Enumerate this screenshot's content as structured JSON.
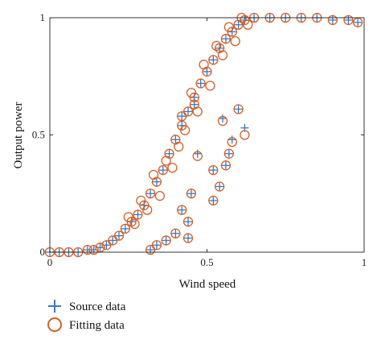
{
  "chart_data": {
    "type": "scatter",
    "xlabel": "Wind speed",
    "ylabel": "Output power",
    "xlim": [
      0,
      1
    ],
    "ylim": [
      0,
      1
    ],
    "x_ticks": [
      {
        "value": 0,
        "label": "0"
      },
      {
        "value": 0.5,
        "label": "0.5"
      },
      {
        "value": 1,
        "label": "1"
      }
    ],
    "y_ticks": [
      {
        "value": 0,
        "label": "0"
      },
      {
        "value": 0.5,
        "label": "0.5"
      },
      {
        "value": 1,
        "label": "1"
      }
    ],
    "grid": false,
    "legend_position": "bottom-left",
    "series": [
      {
        "name": "Source data",
        "marker": "plus",
        "color": "#3a78c4",
        "points": [
          [
            0.0,
            0.0
          ],
          [
            0.03,
            0.0
          ],
          [
            0.06,
            0.0
          ],
          [
            0.09,
            0.0
          ],
          [
            0.12,
            0.01
          ],
          [
            0.14,
            0.01
          ],
          [
            0.16,
            0.02
          ],
          [
            0.18,
            0.03
          ],
          [
            0.2,
            0.05
          ],
          [
            0.22,
            0.07
          ],
          [
            0.24,
            0.1
          ],
          [
            0.26,
            0.13
          ],
          [
            0.28,
            0.16
          ],
          [
            0.3,
            0.2
          ],
          [
            0.32,
            0.25
          ],
          [
            0.34,
            0.3
          ],
          [
            0.36,
            0.35
          ],
          [
            0.38,
            0.42
          ],
          [
            0.4,
            0.48
          ],
          [
            0.42,
            0.54
          ],
          [
            0.44,
            0.6
          ],
          [
            0.46,
            0.66
          ],
          [
            0.48,
            0.72
          ],
          [
            0.5,
            0.77
          ],
          [
            0.52,
            0.82
          ],
          [
            0.54,
            0.87
          ],
          [
            0.56,
            0.91
          ],
          [
            0.58,
            0.94
          ],
          [
            0.6,
            0.97
          ],
          [
            0.62,
            0.99
          ],
          [
            0.65,
            1.0
          ],
          [
            0.7,
            1.0
          ],
          [
            0.75,
            1.0
          ],
          [
            0.8,
            1.0
          ],
          [
            0.85,
            1.0
          ],
          [
            0.9,
            0.99
          ],
          [
            0.95,
            0.99
          ],
          [
            0.98,
            0.98
          ],
          [
            0.32,
            0.01
          ],
          [
            0.34,
            0.03
          ],
          [
            0.37,
            0.05
          ],
          [
            0.4,
            0.08
          ],
          [
            0.44,
            0.06
          ],
          [
            0.44,
            0.13
          ],
          [
            0.42,
            0.18
          ],
          [
            0.45,
            0.25
          ],
          [
            0.42,
            0.58
          ],
          [
            0.46,
            0.63
          ],
          [
            0.52,
            0.35
          ],
          [
            0.54,
            0.28
          ],
          [
            0.56,
            0.37
          ],
          [
            0.57,
            0.42
          ],
          [
            0.52,
            0.22
          ],
          [
            0.6,
            0.61
          ],
          [
            0.62,
            0.53
          ],
          [
            0.58,
            0.48
          ],
          [
            0.55,
            0.57
          ],
          [
            0.47,
            0.42
          ]
        ]
      },
      {
        "name": "Fitting data",
        "marker": "circle",
        "color": "#d2602a",
        "points": [
          [
            0.0,
            0.0
          ],
          [
            0.03,
            0.0
          ],
          [
            0.06,
            0.0
          ],
          [
            0.09,
            0.0
          ],
          [
            0.12,
            0.01
          ],
          [
            0.14,
            0.01
          ],
          [
            0.16,
            0.02
          ],
          [
            0.18,
            0.03
          ],
          [
            0.2,
            0.05
          ],
          [
            0.22,
            0.07
          ],
          [
            0.24,
            0.1
          ],
          [
            0.26,
            0.13
          ],
          [
            0.28,
            0.16
          ],
          [
            0.3,
            0.2
          ],
          [
            0.32,
            0.25
          ],
          [
            0.34,
            0.3
          ],
          [
            0.36,
            0.35
          ],
          [
            0.38,
            0.42
          ],
          [
            0.4,
            0.48
          ],
          [
            0.42,
            0.54
          ],
          [
            0.44,
            0.6
          ],
          [
            0.46,
            0.66
          ],
          [
            0.48,
            0.72
          ],
          [
            0.5,
            0.77
          ],
          [
            0.52,
            0.82
          ],
          [
            0.54,
            0.87
          ],
          [
            0.56,
            0.91
          ],
          [
            0.58,
            0.94
          ],
          [
            0.6,
            0.97
          ],
          [
            0.62,
            0.99
          ],
          [
            0.65,
            1.0
          ],
          [
            0.7,
            1.0
          ],
          [
            0.75,
            1.0
          ],
          [
            0.8,
            1.0
          ],
          [
            0.85,
            1.0
          ],
          [
            0.9,
            0.99
          ],
          [
            0.95,
            0.99
          ],
          [
            0.98,
            0.98
          ],
          [
            0.32,
            0.01
          ],
          [
            0.34,
            0.03
          ],
          [
            0.37,
            0.05
          ],
          [
            0.4,
            0.08
          ],
          [
            0.44,
            0.06
          ],
          [
            0.44,
            0.13
          ],
          [
            0.42,
            0.18
          ],
          [
            0.45,
            0.25
          ],
          [
            0.42,
            0.58
          ],
          [
            0.46,
            0.63
          ],
          [
            0.52,
            0.35
          ],
          [
            0.54,
            0.28
          ],
          [
            0.56,
            0.37
          ],
          [
            0.57,
            0.42
          ],
          [
            0.52,
            0.22
          ],
          [
            0.6,
            0.61
          ],
          [
            0.62,
            0.5
          ],
          [
            0.58,
            0.47
          ],
          [
            0.55,
            0.56
          ],
          [
            0.47,
            0.41
          ],
          [
            0.25,
            0.15
          ],
          [
            0.27,
            0.12
          ],
          [
            0.29,
            0.22
          ],
          [
            0.31,
            0.18
          ],
          [
            0.33,
            0.33
          ],
          [
            0.35,
            0.24
          ],
          [
            0.37,
            0.39
          ],
          [
            0.39,
            0.36
          ],
          [
            0.41,
            0.45
          ],
          [
            0.43,
            0.52
          ],
          [
            0.45,
            0.68
          ],
          [
            0.47,
            0.6
          ],
          [
            0.49,
            0.8
          ],
          [
            0.51,
            0.71
          ],
          [
            0.53,
            0.88
          ],
          [
            0.55,
            0.84
          ],
          [
            0.57,
            0.96
          ],
          [
            0.59,
            0.9
          ],
          [
            0.61,
            1.0
          ],
          [
            0.63,
            0.97
          ]
        ]
      }
    ]
  }
}
